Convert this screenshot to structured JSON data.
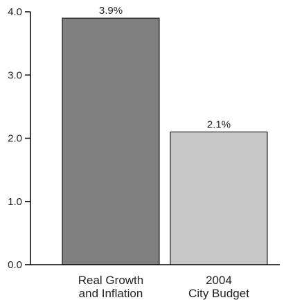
{
  "chart_data": {
    "type": "bar",
    "categories": [
      [
        "Real Growth",
        "and Inflation"
      ],
      [
        "2004",
        "City Budget"
      ]
    ],
    "values": [
      3.9,
      2.1
    ],
    "data_labels": [
      "3.9%",
      "2.1%"
    ],
    "ylim": [
      0,
      4.0
    ],
    "yticks": [
      0.0,
      1.0,
      2.0,
      3.0,
      4.0
    ],
    "ytick_labels": [
      "0.0",
      "1.0",
      "2.0",
      "3.0",
      "4.0"
    ],
    "colors": [
      "#808080",
      "#c8c8c8"
    ],
    "grid": false
  }
}
